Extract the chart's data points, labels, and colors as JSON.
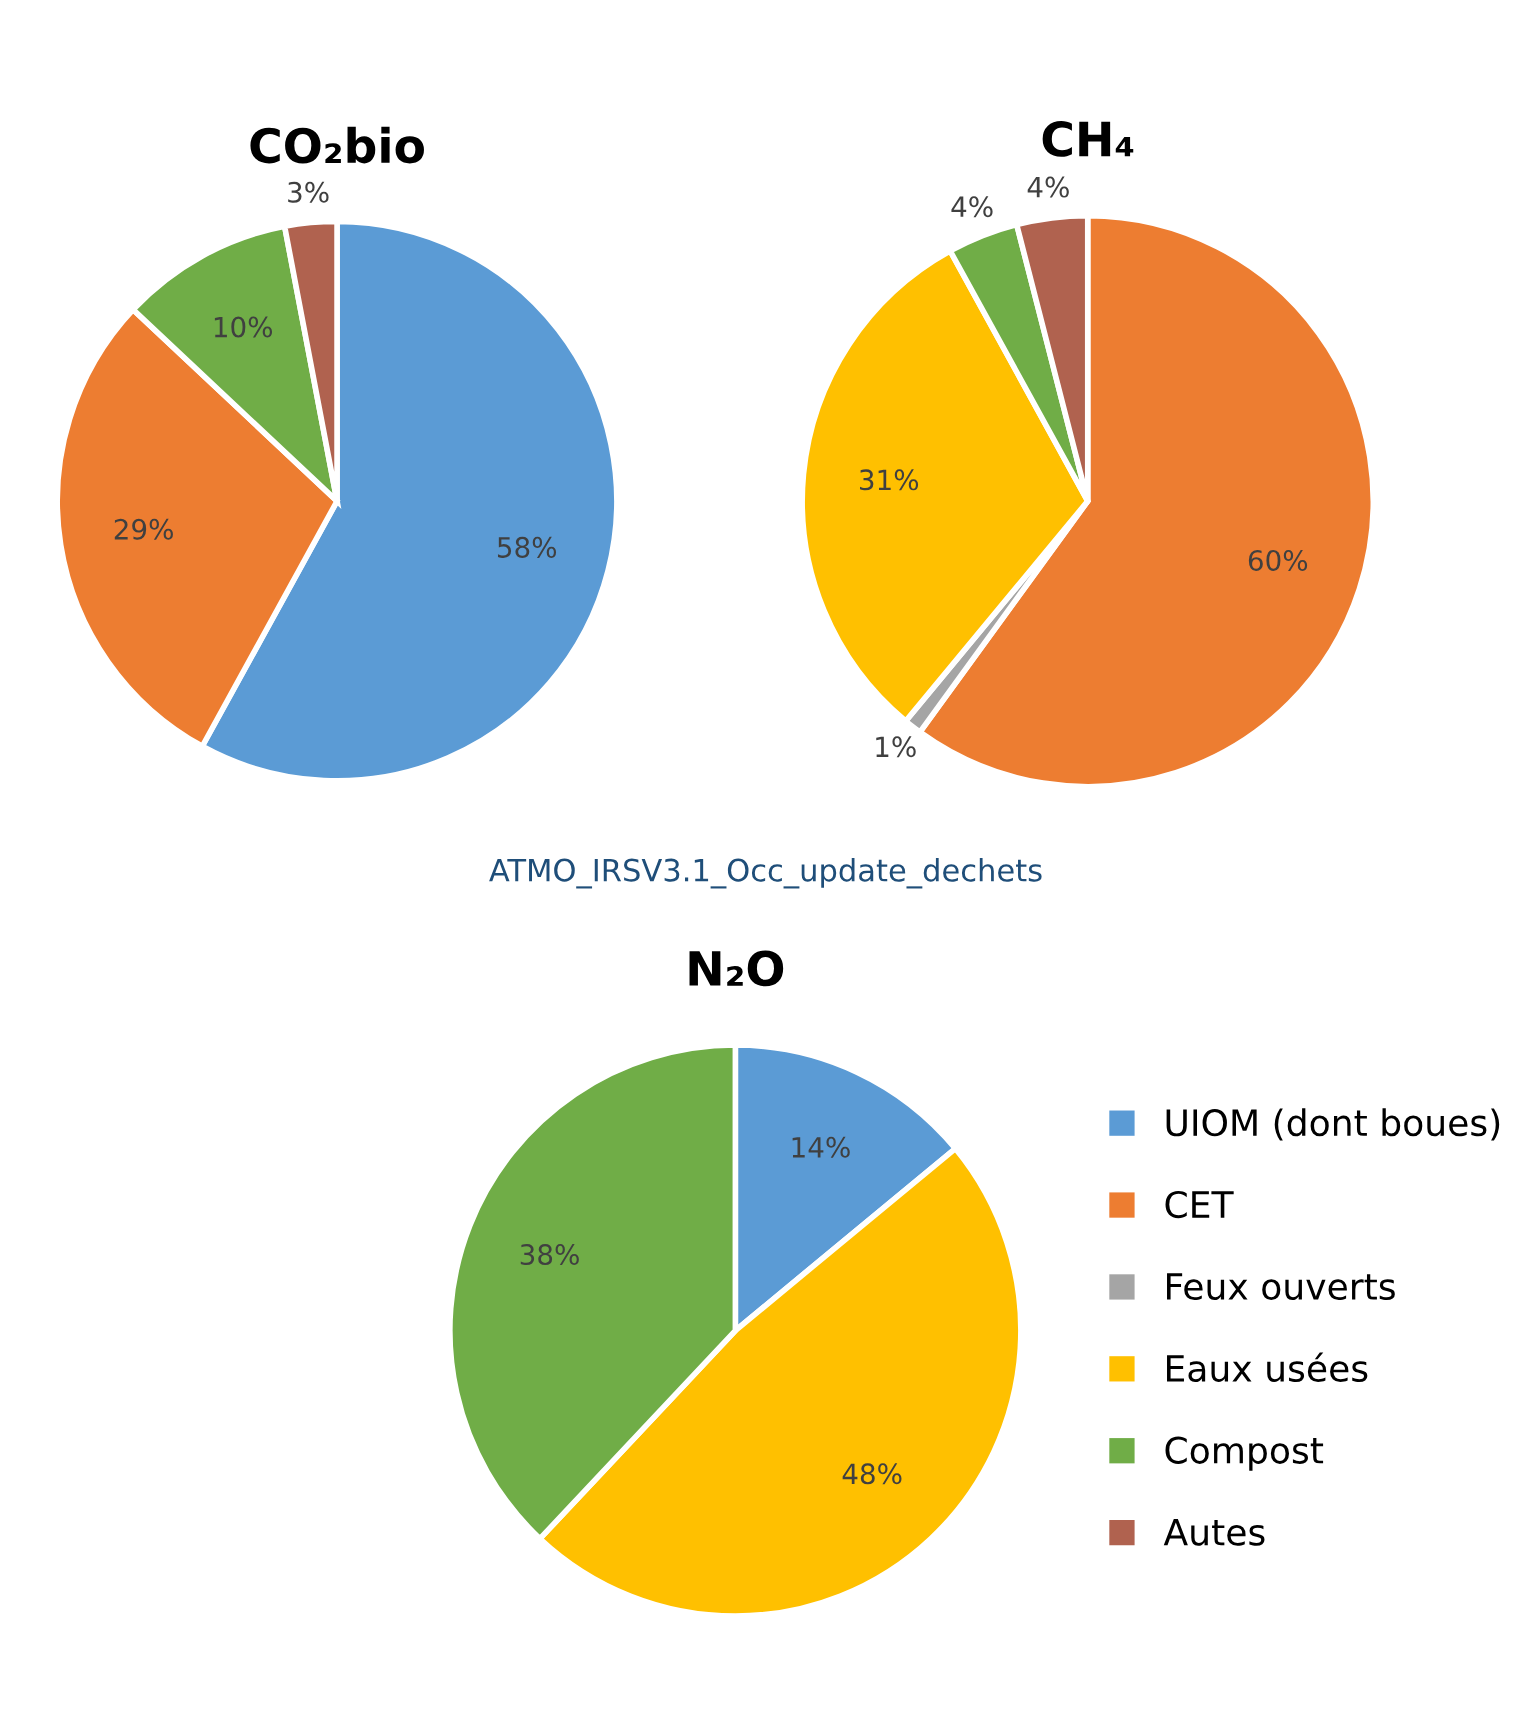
{
  "chart_data": [
    {
      "type": "pie",
      "title": "CO₂bio",
      "categories": [
        null,
        null,
        null,
        null,
        null,
        null
      ],
      "values": [
        58,
        29,
        0,
        0,
        10,
        3
      ],
      "colors": [
        "#5b9bd5",
        "#ed7d31",
        "#a5a5a5",
        "#ffc000",
        "#70ad47",
        "#b0624f"
      ],
      "value_labels": [
        "58%",
        "29%",
        null,
        null,
        "10%",
        "3%"
      ]
    },
    {
      "type": "pie",
      "title": "CH₄",
      "categories": [
        null,
        null,
        null,
        null,
        null,
        null
      ],
      "values": [
        0,
        60,
        1,
        31,
        4,
        4
      ],
      "colors": [
        "#5b9bd5",
        "#ed7d31",
        "#a5a5a5",
        "#ffc000",
        "#70ad47",
        "#b0624f"
      ],
      "value_labels": [
        null,
        "60%",
        "1%",
        "31%",
        "4%",
        "4%"
      ],
      "annotations": [
        "ATMO_IRSV3.1_Occ_update_dechets"
      ]
    },
    {
      "type": "pie",
      "title": "N₂O",
      "categories": [
        "UIOM (dont boues)",
        "CET",
        "Feux ouverts",
        "Eaux usées",
        "Compost",
        "Autes"
      ],
      "values": [
        14,
        0,
        0,
        48,
        38,
        0
      ],
      "colors": [
        "#5b9bd5",
        "#ed7d31",
        "#a5a5a5",
        "#ffc000",
        "#70ad47",
        "#b0624f"
      ],
      "value_labels": [
        "14%",
        null,
        null,
        "48%",
        "38%",
        null
      ],
      "legend": "right"
    }
  ]
}
